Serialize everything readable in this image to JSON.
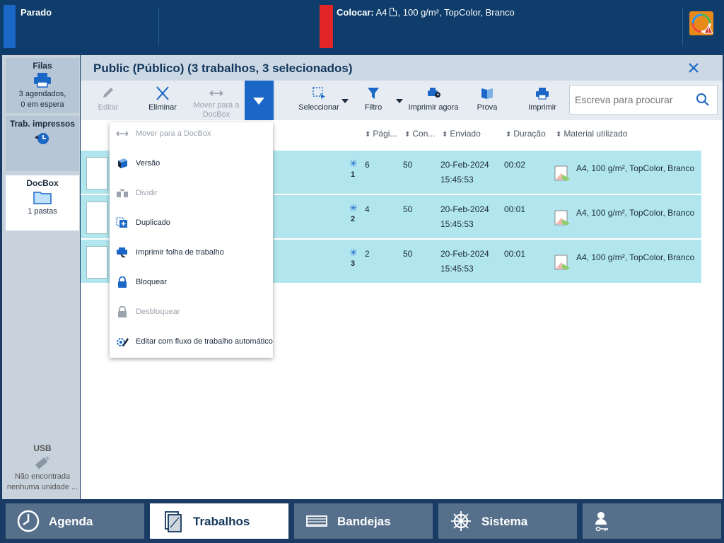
{
  "status": {
    "left_text": "Parado",
    "mid_label": "Colocar:",
    "mid_paper": "A4",
    "mid_detail": ", 100 g/m², TopColor, Branco"
  },
  "sidebar": {
    "filas": {
      "title": "Filas",
      "line1": "3 agendados,",
      "line2": "0 em espera"
    },
    "trab": {
      "title": "Trab. impressos"
    },
    "docbox": {
      "title": "DocBox",
      "sub": "1 pastas"
    },
    "usb": {
      "title": "USB",
      "line1": "Não encontrada",
      "line2": "nenhuma unidade ..."
    }
  },
  "main": {
    "title": "Public (Público) (3 trabalhos, 3 selecionados)"
  },
  "toolbar": {
    "edit": "Editar",
    "delete": "Eliminar",
    "move_docbox": "Mover para a DocBox",
    "select": "Seleccionar",
    "filter": "Filtro",
    "print_now": "Imprimir agora",
    "proof": "Prova",
    "print": "Imprimir",
    "search_placeholder": "Escreva para procurar"
  },
  "table": {
    "headers": {
      "pages": "Pági...",
      "copies": "Con...",
      "sent": "Enviado",
      "duration": "Duração",
      "media": "Material utilizado"
    },
    "rows": [
      {
        "index": "1",
        "pages": "6",
        "copies": "50",
        "date": "20-Feb-2024",
        "time": "15:45:53",
        "duration": "00:02",
        "media": "A4, 100 g/m², TopColor, Branco"
      },
      {
        "index": "2",
        "pages": "4",
        "copies": "50",
        "date": "20-Feb-2024",
        "time": "15:45:53",
        "duration": "00:01",
        "media": "A4, 100 g/m², TopColor, Branco"
      },
      {
        "index": "3",
        "pages": "2",
        "copies": "50",
        "date": "20-Feb-2024",
        "time": "15:45:53",
        "duration": "00:01",
        "media": "A4, 100 g/m², TopColor, Branco"
      }
    ]
  },
  "menu": {
    "move_docbox": "Mover para a DocBox",
    "version": "Versão",
    "split": "Dividir",
    "duplicate": "Duplicado",
    "print_worksheet": "Imprimir folha de trabalho",
    "lock": "Bloquear",
    "unlock": "Desbloquear",
    "edit_workflow": "Editar com fluxo de trabalho automático"
  },
  "nav": {
    "agenda": "Agenda",
    "trabalhos": "Trabalhos",
    "bandejas": "Bandejas",
    "sistema": "Sistema"
  },
  "colors": {
    "accent": "#1a67c7",
    "topbar": "#0e3d6b",
    "row_selected": "#b2e6ef",
    "status_stopped": "#1a67c7",
    "status_load": "#e32528"
  }
}
